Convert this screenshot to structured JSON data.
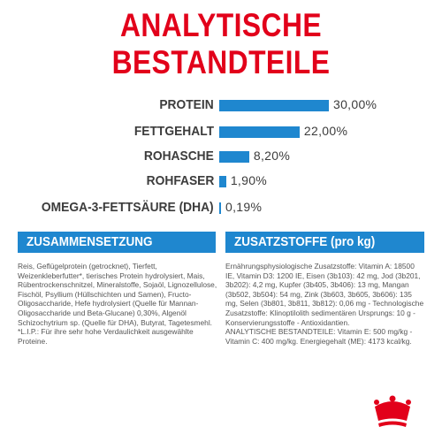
{
  "title": "ANALYTISCHE BESTANDTEILE",
  "colors": {
    "brand_red": "#e2001a",
    "bar_blue": "#1f87cf",
    "text_dark": "#3c3c3c"
  },
  "chart_data": {
    "type": "bar",
    "orientation": "horizontal",
    "categories": [
      "PROTEIN",
      "FETTGEHALT",
      "ROHASCHE",
      "ROHFASER",
      "OMEGA-3-FETTSÄURE (DHA)"
    ],
    "values": [
      30.0,
      22.0,
      8.2,
      1.9,
      0.19
    ],
    "value_labels": [
      "30,00%",
      "22,00%",
      "8,20%",
      "1,90%",
      "0,19%"
    ],
    "unit": "%",
    "xlim": [
      0,
      30
    ],
    "grid": false
  },
  "sections": {
    "zusammensetzung": {
      "heading": "ZUSAMMENSETZUNG",
      "text": "Reis, Geflügelprotein (getrocknet), Tierfett, Weizenkleberfutter*, tierisches Protein hydrolysiert, Mais, Rübentrockenschnitzel, Mineralstoffe, Sojaöl, Lignozellulose, Fischöl, Psyllium (Hüllschichten und Samen), Fructo-Oligosaccharide, Hefe hydrolysiert (Quelle für Mannan-Oligosaccharide und Beta-Glucane) 0,30%, Algenöl Schizochytrium sp. (Quelle für DHA), Butyrat, Tagetesmehl.\n*L.I.P.: Für ihre sehr hohe Verdaulichkeit ausgewählte Proteine."
    },
    "zusatzstoffe": {
      "heading": "ZUSATZSTOFFE (pro kg)",
      "text": "Ernährungsphysiologische Zusatzstoffe: Vitamin A: 18500 IE, Vitamin D3: 1200 IE, Eisen (3b103): 42 mg, Jod (3b201, 3b202): 4,2 mg, Kupfer (3b405, 3b406): 13 mg, Mangan (3b502, 3b504): 54 mg, Zink (3b603, 3b605, 3b606): 135 mg, Selen (3b801, 3b811, 3b812): 0,06 mg - Technologische Zusatzstoffe: Klinoptilolith sedimentären Ursprungs: 10 g - Konservierungsstoffe - Antioxidantien.\nANALYTISCHE BESTANDTEILE: Vitamin E: 500 mg/kg - Vitamin C: 400 mg/kg. Energiegehalt (ME): 4173 kcal/kg."
    }
  },
  "logo": {
    "icon": "royal-canin-crown-logo"
  }
}
